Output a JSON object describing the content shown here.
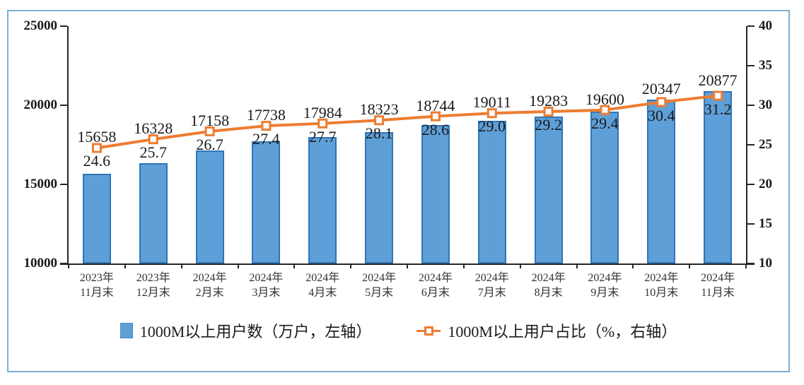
{
  "frame": {
    "border_color": "#7bafd4",
    "axis_color": "#262626"
  },
  "chart_data": {
    "type": "bar",
    "subtype": "bar-and-line-combo",
    "categories": [
      "2023年\n11月末",
      "2023年\n12月末",
      "2024年\n2月末",
      "2024年\n3月末",
      "2024年\n4月末",
      "2024年\n5月末",
      "2024年\n6月末",
      "2024年\n7月末",
      "2024年\n8月末",
      "2024年\n9月末",
      "2024年\n10月末",
      "2024年\n11月末"
    ],
    "series": [
      {
        "name": "1000M以上用户数（万户，左轴）",
        "type": "bar",
        "axis": "left",
        "values": [
          15658,
          16328,
          17158,
          17738,
          17984,
          18323,
          18744,
          19011,
          19283,
          19600,
          20347,
          20877
        ],
        "fill_color": "#5f9fd8",
        "border_color": "#2e75b6"
      },
      {
        "name": "1000M以上用户占比（%，右轴）",
        "type": "line",
        "axis": "right",
        "values": [
          24.6,
          25.7,
          26.7,
          27.4,
          27.7,
          28.1,
          28.6,
          29.0,
          29.2,
          29.4,
          30.4,
          31.2
        ],
        "line_color": "#ed7d31",
        "marker": "open-square"
      }
    ],
    "left_axis": {
      "min": 10000,
      "max": 25000,
      "step": 5000,
      "ticks": [
        25000,
        20000,
        15000,
        10000
      ]
    },
    "right_axis": {
      "min": 10,
      "max": 40,
      "step": 5,
      "ticks": [
        40,
        35,
        30,
        25,
        20,
        15,
        10
      ]
    },
    "grid": "off",
    "legend_position": "bottom",
    "data_labels": "on"
  }
}
